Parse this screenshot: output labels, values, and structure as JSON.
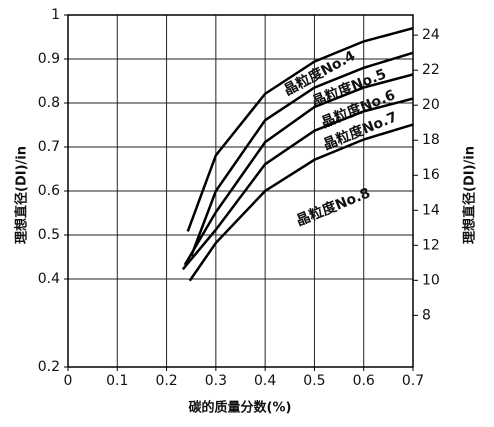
{
  "chart_data": {
    "type": "line",
    "xlabel": "碳的质量分数(%)",
    "ylabel": "理想直径(DI)/in",
    "y2label": "理想直径(DI)/in",
    "xlim": [
      0,
      0.7
    ],
    "xticks": [
      0,
      0.1,
      0.2,
      0.3,
      0.4,
      0.5,
      0.6,
      0.7
    ],
    "ylim": [
      0.2,
      1.0
    ],
    "yticks": [
      0.2,
      0.4,
      0.5,
      0.6,
      0.7,
      0.8,
      0.9,
      1.0
    ],
    "y2lim": [
      5.05,
      25.15
    ],
    "y2ticks": [
      8,
      10,
      12,
      14,
      16,
      18,
      20,
      22,
      24
    ],
    "grid": true,
    "series": [
      {
        "name": "晶粒度No.4",
        "color": "#000000",
        "x": [
          0.243,
          0.3,
          0.4,
          0.5,
          0.6,
          0.7
        ],
        "values": [
          0.508,
          0.681,
          0.821,
          0.894,
          0.94,
          0.97
        ]
      },
      {
        "name": "晶粒度No.5",
        "color": "#000000",
        "x": [
          0.25,
          0.3,
          0.4,
          0.5,
          0.6,
          0.7
        ],
        "values": [
          0.452,
          0.6,
          0.761,
          0.835,
          0.88,
          0.914
        ]
      },
      {
        "name": "晶粒度No.6",
        "color": "#000000",
        "x": [
          0.237,
          0.3,
          0.4,
          0.5,
          0.6,
          0.7
        ],
        "values": [
          0.432,
          0.552,
          0.711,
          0.791,
          0.835,
          0.865
        ]
      },
      {
        "name": "晶粒度No.7",
        "color": "#000000",
        "x": [
          0.233,
          0.3,
          0.4,
          0.5,
          0.6,
          0.7
        ],
        "values": [
          0.422,
          0.512,
          0.661,
          0.737,
          0.781,
          0.81
        ]
      },
      {
        "name": "晶粒度No.8",
        "color": "#000000",
        "x": [
          0.247,
          0.3,
          0.4,
          0.5,
          0.6,
          0.7
        ],
        "values": [
          0.396,
          0.482,
          0.6,
          0.671,
          0.717,
          0.751
        ]
      }
    ]
  }
}
